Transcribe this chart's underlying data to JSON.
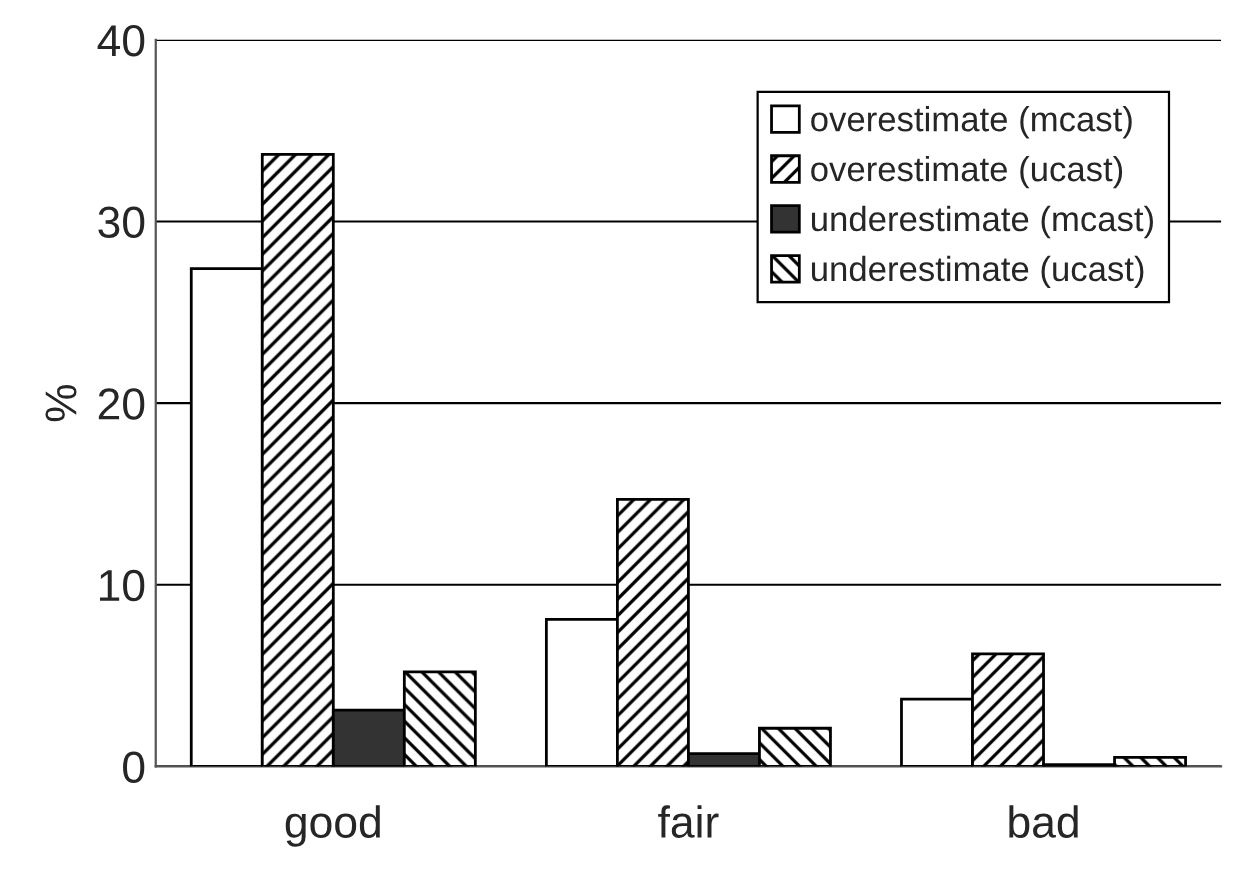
{
  "chart_data": {
    "type": "bar",
    "ylabel": "%",
    "categories": [
      "good",
      "fair",
      "bad"
    ],
    "series": [
      {
        "name": "overestimate (mcast)",
        "color": "#ffffff",
        "values": [
          27.4,
          8.1,
          3.7
        ]
      },
      {
        "name": "overestimate (ucast)",
        "color": "#000000",
        "values": [
          33.7,
          14.7,
          6.2
        ]
      },
      {
        "name": "underestimate (mcast)",
        "color": "#333333",
        "values": [
          3.1,
          0.7,
          0.1
        ]
      },
      {
        "name": "underestimate (ucast)",
        "color": "#000000",
        "values": [
          5.2,
          2.1,
          0.5
        ]
      }
    ],
    "ylim": [
      0,
      40
    ],
    "yticks": [
      0,
      10,
      20,
      30,
      40
    ],
    "grid": "y",
    "legend": "top right"
  }
}
